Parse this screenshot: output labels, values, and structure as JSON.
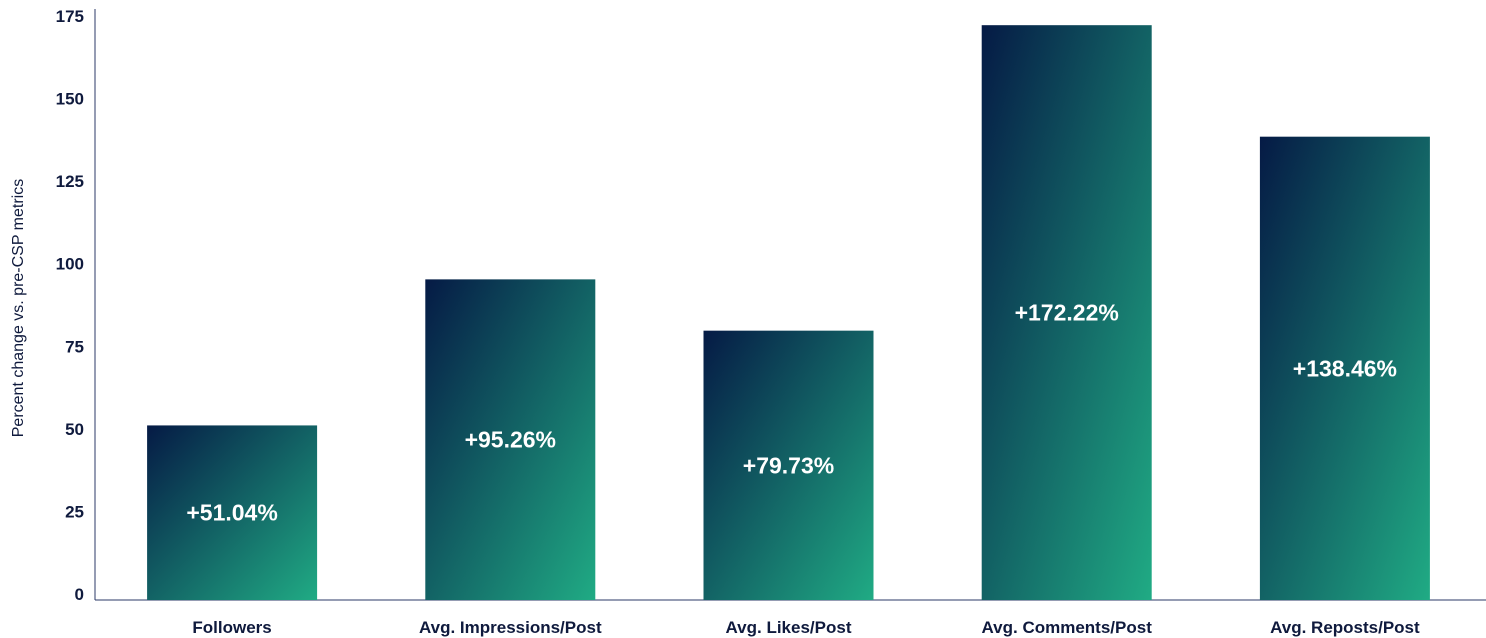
{
  "chart_data": {
    "type": "bar",
    "categories": [
      "Followers",
      "Avg. Impressions/Post",
      "Avg. Likes/Post",
      "Avg. Comments/Post",
      "Avg. Reposts/Post"
    ],
    "values": [
      51.04,
      95.26,
      79.73,
      172.22,
      138.46
    ],
    "data_labels": [
      "+51.04%",
      "+95.26%",
      "+79.73%",
      "+172.22%",
      "+138.46%"
    ],
    "title": "",
    "xlabel": "",
    "ylabel": "Percent change vs. pre-CSP metrics",
    "ylim": [
      0,
      175
    ],
    "yticks": [
      0,
      25,
      50,
      75,
      100,
      125,
      150,
      175
    ],
    "ytick_labels": [
      "0",
      "25",
      "50",
      "75",
      "100",
      "125",
      "150",
      "175"
    ],
    "grid": false,
    "legend": "none",
    "colors": {
      "bar_gradient_top": "#051a45",
      "bar_gradient_bottom": "#20ab84",
      "axis": "#2b3a67",
      "text": "#0f1a3d",
      "data_label_text": "#ffffff"
    }
  }
}
